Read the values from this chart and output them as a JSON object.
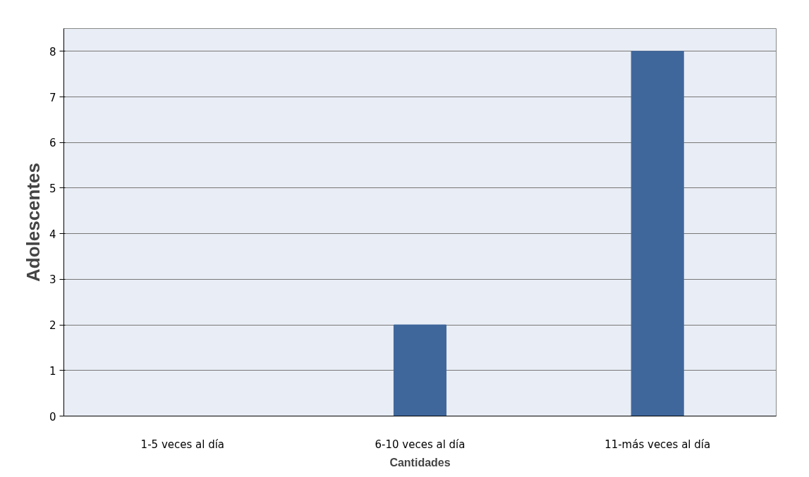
{
  "chart_data": {
    "type": "bar",
    "xlabel": "Cantidades",
    "ylabel": "Adolescentes",
    "categories": [
      "1-5 veces al día",
      "6-10 veces al día",
      "11-más veces al día"
    ],
    "values": [
      0,
      2,
      8
    ],
    "color": "#3f679c",
    "ylim": [
      0,
      8.5
    ],
    "yticks": [
      0,
      1,
      2,
      3,
      4,
      5,
      6,
      7,
      8
    ],
    "grid": "y"
  }
}
